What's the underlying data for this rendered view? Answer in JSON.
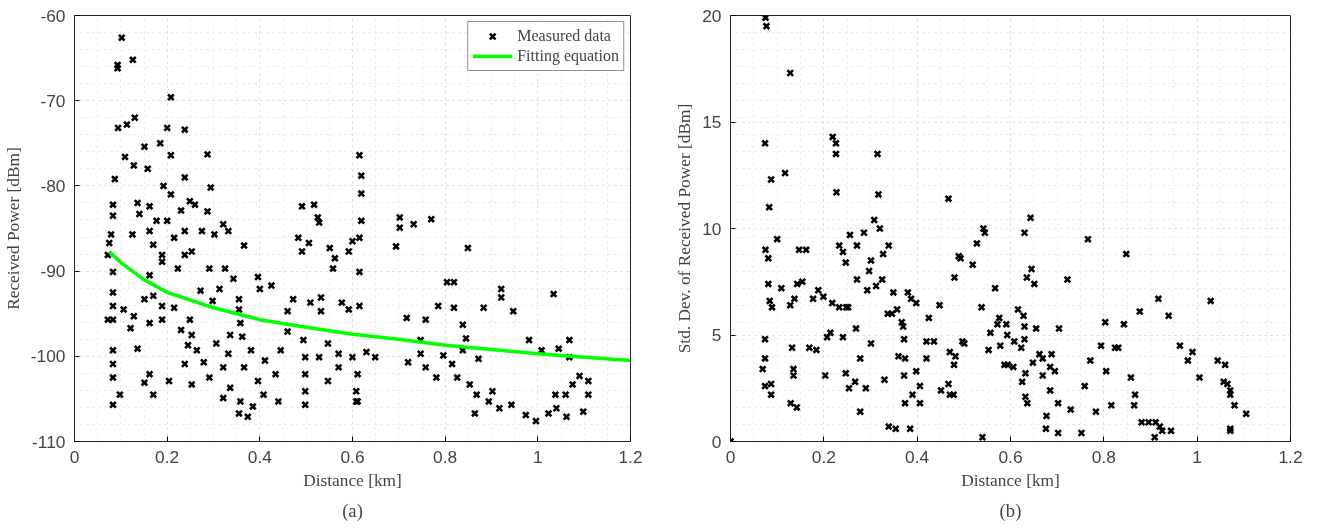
{
  "chart_data": [
    {
      "type": "scatter",
      "xlabel": "Distance [km]",
      "ylabel": "Received Power [dBm]",
      "annotations": [
        "(a)"
      ],
      "xlim": [
        0,
        1.2
      ],
      "ylim": [
        -110,
        -60
      ],
      "xticks": [
        0,
        0.2,
        0.4,
        0.6,
        0.8,
        1,
        1.2
      ],
      "yticks": [
        -110,
        -100,
        -90,
        -80,
        -70,
        -60
      ],
      "grid": true,
      "legend": "top right",
      "series": [
        {
          "name": "Measured data",
          "color": "#000000",
          "marker": "cross",
          "x": [
            0.102,
            0.093,
            0.093,
            0.126,
            0.208,
            0.094,
            0.113,
            0.13,
            0.2,
            0.238,
            0.109,
            0.151,
            0.185,
            0.208,
            0.287,
            0.128,
            0.087,
            0.158,
            0.192,
            0.208,
            0.238,
            0.294,
            0.083,
            0.083,
            0.136,
            0.162,
            0.249,
            0.26,
            0.23,
            0.287,
            0.177,
            0.2,
            0.238,
            0.275,
            0.321,
            0.332,
            0.125,
            0.079,
            0.075,
            0.162,
            0.215,
            0.302,
            0.17,
            0.14,
            0.189,
            0.238,
            0.366,
            0.072,
            0.083,
            0.162,
            0.189,
            0.223,
            0.253,
            0.291,
            0.325,
            0.343,
            0.272,
            0.313,
            0.396,
            0.4,
            0.425,
            0.298,
            0.355,
            0.083,
            0.083,
            0.151,
            0.17,
            0.189,
            0.215,
            0.355,
            0.083,
            0.072,
            0.106,
            0.128,
            0.162,
            0.121,
            0.189,
            0.249,
            0.23,
            0.253,
            0.358,
            0.336,
            0.362,
            0.472,
            0.46,
            0.46,
            0.509,
            0.532,
            0.532,
            0.494,
            0.136,
            0.083,
            0.083,
            0.083,
            0.245,
            0.264,
            0.306,
            0.332,
            0.381,
            0.238,
            0.279,
            0.321,
            0.366,
            0.411,
            0.445,
            0.162,
            0.204,
            0.253,
            0.291,
            0.336,
            0.396,
            0.434,
            0.151,
            0.17,
            0.321,
            0.358,
            0.385,
            0.083,
            0.098,
            0.355,
            0.374,
            0.408,
            0.44,
            0.498,
            0.498,
            0.498,
            0.498,
            0.528,
            0.547,
            0.57,
            0.57,
            0.547,
            0.6,
            0.608,
            0.608,
            0.562,
            0.551,
            0.592,
            0.6,
            0.558,
            0.615,
            0.619,
            0.619,
            0.619,
            0.491,
            0.517,
            0.525,
            0.528,
            0.483,
            0.491,
            0.506,
            0.577,
            0.592,
            0.615,
            0.615,
            0.615,
            0.702,
            0.702,
            0.732,
            0.77,
            0.694,
            0.849,
            0.804,
            0.819,
            0.921,
            0.921,
            1.034,
            0.785,
            0.819,
            0.883,
            0.947,
            0.717,
            0.758,
            0.838,
            0.845,
            0.981,
            1.008,
            1.045,
            1.068,
            1.068,
            0.63,
            0.649,
            0.747,
            0.747,
            0.72,
            0.758,
            0.796,
            0.815,
            0.838,
            0.872,
            0.781,
            0.826,
            0.853,
            0.868,
            0.611,
            0.611,
            0.864,
            0.894,
            0.917,
            0.943,
            0.974,
            0.996,
            1.023,
            1.04,
            1.062,
            1.06,
            1.075,
            1.09,
            1.109,
            1.109,
            1.098,
            1.038,
            0.902
          ],
          "values": [
            -62.6,
            -65.8,
            -66.2,
            -65.2,
            -69.6,
            -73.2,
            -72.8,
            -72,
            -73.2,
            -73.4,
            -76.6,
            -75.4,
            -75,
            -76.4,
            -76.3,
            -77.6,
            -79.2,
            -78,
            -80,
            -81,
            -79,
            -80.2,
            -82.2,
            -83.5,
            -82,
            -82.4,
            -81.8,
            -82.2,
            -82.9,
            -83,
            -84.1,
            -84.1,
            -85.3,
            -85.3,
            -84.5,
            -85.3,
            -85.7,
            -85.7,
            -86.7,
            -85.3,
            -86.1,
            -85.7,
            -86.9,
            -83.3,
            -88.1,
            -88.1,
            -87,
            -88.1,
            -90.1,
            -90.5,
            -88.9,
            -89.7,
            -87.7,
            -89.7,
            -89.7,
            -90.9,
            -92.3,
            -92.1,
            -90.7,
            -92.1,
            -91.7,
            -93.5,
            -93.3,
            -92.5,
            -94.1,
            -93.3,
            -92.9,
            -94.1,
            -94.3,
            -94.5,
            -95.7,
            -95.7,
            -94.5,
            -95.3,
            -96.1,
            -96.7,
            -95.7,
            -95.7,
            -96.9,
            -97.5,
            -96.1,
            -97.5,
            -97.7,
            -93.3,
            -94.7,
            -97.1,
            -93.7,
            -93.1,
            -94.7,
            -98.1,
            -99.1,
            -99.3,
            -100.9,
            -102.5,
            -98.7,
            -99.3,
            -98.5,
            -99.7,
            -99.3,
            -100.9,
            -100.7,
            -101.3,
            -101.3,
            -100.5,
            -99.3,
            -102.1,
            -102.9,
            -103.3,
            -102.5,
            -103.7,
            -102.9,
            -102.1,
            -103.1,
            -104.5,
            -104.9,
            -105.3,
            -105.9,
            -105.7,
            -104.5,
            -106.7,
            -107.1,
            -104.5,
            -105.3,
            -100.1,
            -102.1,
            -104.1,
            -105.7,
            -100.1,
            -98.5,
            -99.7,
            -101.3,
            -102.9,
            -100.1,
            -104.1,
            -105.3,
            -88.5,
            -87.3,
            -87.7,
            -86.5,
            -89.7,
            -76.4,
            -78.8,
            -80.9,
            -84.1,
            -82.4,
            -82.2,
            -83.7,
            -84.3,
            -86.1,
            -87.7,
            -86.7,
            -93.7,
            -94.5,
            -86.1,
            -90.1,
            -94.1,
            -83.7,
            -84.9,
            -84.5,
            -83.9,
            -87.1,
            -87.3,
            -91.3,
            -91.3,
            -92.1,
            -93.1,
            -92.7,
            -94.1,
            -94.3,
            -94.3,
            -94.7,
            -95.5,
            -95.7,
            -96.3,
            -97.9,
            -98.1,
            -99.3,
            -99.1,
            -98.1,
            -100.1,
            -99.5,
            -100.1,
            -98.1,
            -99.7,
            -100.7,
            -101.3,
            -99.9,
            -100.9,
            -99.3,
            -100.3,
            -102.5,
            -102.5,
            -103.3,
            -104.5,
            -102.1,
            -105.3,
            -106.7,
            -105.3,
            -106.1,
            -105.7,
            -106.9,
            -107.6,
            -106.7,
            -106.1,
            -107.1,
            -104.5,
            -103.3,
            -102.3,
            -102.9,
            -104.5,
            -106.5,
            -104.5,
            -104.1
          ]
        },
        {
          "name": "Fitting equation",
          "type": "line",
          "marker": "none",
          "color": "#00ff00",
          "x": [
            0.075,
            0.1,
            0.15,
            0.2,
            0.3,
            0.4,
            0.5,
            0.6,
            0.7,
            0.8,
            0.9,
            1.0,
            1.1,
            1.2
          ],
          "values": [
            -87.7,
            -89.0,
            -91.0,
            -92.5,
            -94.3,
            -95.7,
            -96.6,
            -97.4,
            -98.0,
            -98.7,
            -99.2,
            -99.7,
            -100.1,
            -100.5
          ]
        }
      ]
    },
    {
      "type": "scatter",
      "xlabel": "Distance [km]",
      "ylabel": "Std. Dev. of Received Power [dBm]",
      "annotations": [
        "(b)"
      ],
      "xlim": [
        0,
        1.2
      ],
      "ylim": [
        0,
        20
      ],
      "xticks": [
        0,
        0.2,
        0.4,
        0.6,
        0.8,
        1,
        1.2
      ],
      "yticks": [
        0,
        5,
        10,
        15,
        20
      ],
      "grid": true,
      "series": [
        {
          "color": "#000000",
          "marker": "cross",
          "x": [
            0,
            0.075,
            0.077,
            0.128,
            0.074,
            0.087,
            0.117,
            0.083,
            0.1,
            0.075,
            0.081,
            0.081,
            0.109,
            0.084,
            0.089,
            0.074,
            0.074,
            0.069,
            0.074,
            0.087,
            0.087,
            0.128,
            0.137,
            0.143,
            0.154,
            0.147,
            0.162,
            0.132,
            0.135,
            0.135,
            0.129,
            0.142,
            0.169,
            0.177,
            0.188,
            0.199,
            0.184,
            0.203,
            0.207,
            0.214,
            0.218,
            0.233,
            0.248,
            0.219,
            0.226,
            0.226,
            0.227,
            0.233,
            0.241,
            0.247,
            0.241,
            0.252,
            0.256,
            0.271,
            0.271,
            0.269,
            0.247,
            0.254,
            0.267,
            0.278,
            0.278,
            0.286,
            0.29,
            0.293,
            0.301,
            0.297,
            0.308,
            0.315,
            0.317,
            0.32,
            0.312,
            0.325,
            0.327,
            0.301,
            0.33,
            0.339,
            0.337,
            0.346,
            0.357,
            0.349,
            0.339,
            0.354,
            0.367,
            0.37,
            0.372,
            0.36,
            0.374,
            0.372,
            0.374,
            0.38,
            0.387,
            0.398,
            0.385,
            0.39,
            0.398,
            0.406,
            0.406,
            0.42,
            0.436,
            0.42,
            0.425,
            0.448,
            0.467,
            0.48,
            0.451,
            0.467,
            0.47,
            0.478,
            0.47,
            0.482,
            0.489,
            0.497,
            0.542,
            0.545,
            0.528,
            0.493,
            0.519,
            0.643,
            0.63,
            0.766,
            0.848,
            0.645,
            0.635,
            0.651,
            0.567,
            0.722,
            0.917,
            1.029,
            0.538,
            0.616,
            0.628,
            0.877,
            0.939,
            0.576,
            0.591,
            0.557,
            0.572,
            0.63,
            0.655,
            0.704,
            0.803,
            0.843,
            0.593,
            0.501,
            0.608,
            0.63,
            0.623,
            0.578,
            0.553,
            0.794,
            0.824,
            0.831,
            0.963,
            0.99,
            0.662,
            0.688,
            0.669,
            0.648,
            0.587,
            0.594,
            0.606,
            0.479,
            0.771,
            0.98,
            1.044,
            0.685,
            0.695,
            0.805,
            0.632,
            0.625,
            0.669,
            1.005,
            0.858,
            1.057,
            0.759,
            0.685,
            0.867,
            0.632,
            0.636,
            0.702,
            0.729,
            0.783,
            0.816,
            0.865,
            0.677,
            0.676,
            0.702,
            0.752,
            0.54,
            0.881,
            0.896,
            0.911,
            0.92,
            0.925,
            0.944,
            0.909,
            1.071,
            1.071,
            1.08,
            1.105,
            1.071,
            1.071,
            1.06,
            1.065
          ],
          "values": [
            0,
            19.9,
            19.5,
            17.3,
            14.0,
            12.3,
            12.6,
            11.0,
            9.5,
            9.0,
            8.6,
            7.4,
            7.2,
            6.6,
            6.3,
            4.8,
            3.9,
            3.4,
            2.6,
            2.2,
            2.7,
            6.4,
            6.7,
            7.4,
            7.5,
            9.0,
            9.0,
            4.4,
            3.4,
            3.1,
            1.8,
            1.6,
            4.4,
            6.7,
            7.1,
            6.8,
            4.3,
            3.1,
            4.9,
            5.1,
            6.5,
            6.3,
            6.3,
            14.3,
            14.0,
            13.5,
            11.7,
            9.2,
            8.9,
            8.4,
            4.9,
            6.3,
            9.7,
            9.2,
            7.6,
            5.3,
            3.2,
            2.5,
            2.8,
            3.9,
            1.4,
            9.8,
            2.5,
            7.1,
            8.5,
            8.0,
            10.4,
            13.5,
            11.6,
            10.0,
            7.3,
            7.6,
            8.8,
            4.6,
            2.9,
            9.2,
            6.0,
            6.0,
            6.2,
            7.0,
            0.7,
            0.6,
            5.6,
            5.4,
            4.8,
            4.0,
            3.9,
            3.1,
            1.8,
            7.0,
            6.7,
            6.5,
            0.6,
            2.2,
            3.3,
            2.6,
            1.8,
            4.7,
            4.7,
            3.9,
            5.8,
            6.4,
            11.4,
            7.7,
            2.4,
            2.7,
            2.2,
            2.2,
            4.2,
            4.0,
            8.7,
            4.7,
            10.0,
            9.8,
            9.3,
            8.6,
            8.3,
            10.5,
            9.8,
            9.5,
            8.8,
            8.1,
            7.7,
            7.4,
            7.2,
            7.6,
            6.7,
            6.6,
            6.3,
            6.2,
            5.9,
            6.1,
            5.9,
            5.8,
            5.5,
            5.1,
            5.5,
            5.4,
            5.3,
            5.3,
            5.6,
            5.5,
            5.0,
            4.6,
            4.7,
            4.8,
            4.4,
            4.5,
            4.3,
            4.5,
            4.4,
            4.4,
            4.5,
            4.2,
            4.1,
            4.1,
            3.9,
            3.7,
            3.6,
            3.6,
            3.5,
            3.6,
            3.8,
            3.8,
            3.8,
            3.5,
            3.3,
            3.3,
            3.2,
            2.8,
            3.1,
            3.0,
            3.0,
            2.8,
            2.6,
            2.4,
            2.2,
            2.1,
            1.8,
            1.8,
            1.5,
            1.4,
            1.7,
            1.7,
            1.2,
            0.6,
            0.4,
            0.4,
            0.2,
            0.9,
            0.9,
            0.9,
            0.7,
            0.5,
            0.5,
            0.2,
            2.2,
            2.4,
            1.7,
            1.3,
            0.6,
            0.5,
            3.6,
            2.7
          ]
        }
      ]
    }
  ]
}
